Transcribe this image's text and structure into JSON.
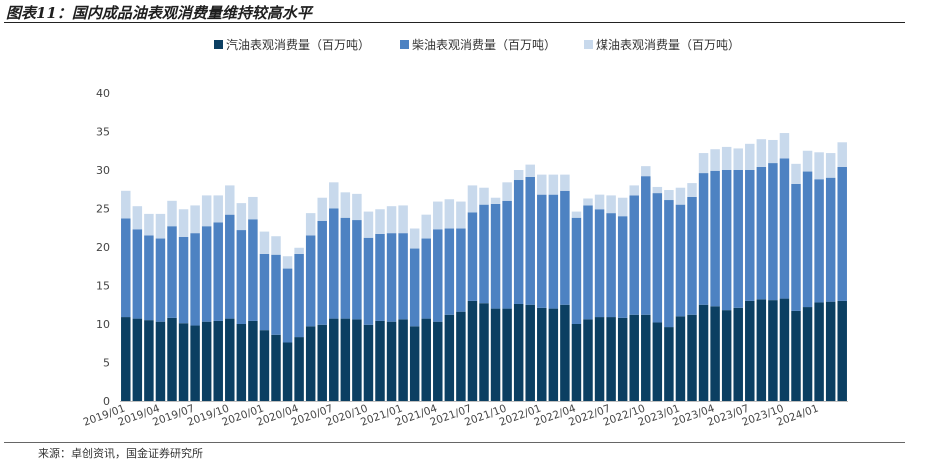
{
  "figure": {
    "title": "图表11：国内成品油表观消费量维持较高水平",
    "source": "来源：卓创资讯，国金证券研究所"
  },
  "colors": {
    "gasoline": "#0b3f62",
    "diesel": "#4d82c2",
    "kerosene": "#c8d9ec",
    "axis": "#bfbfbf"
  },
  "chart_data": {
    "type": "bar",
    "stacked": true,
    "legend_position": "top",
    "ylim": [
      0,
      40
    ],
    "yticks": [
      0,
      5,
      10,
      15,
      20,
      25,
      30,
      35,
      40
    ],
    "grid": false,
    "categories": [
      "2019/01",
      "2019/02",
      "2019/03",
      "2019/04",
      "2019/05",
      "2019/06",
      "2019/07",
      "2019/08",
      "2019/09",
      "2019/10",
      "2019/11",
      "2019/12",
      "2020/01",
      "2020/02",
      "2020/03",
      "2020/04",
      "2020/05",
      "2020/06",
      "2020/07",
      "2020/08",
      "2020/09",
      "2020/10",
      "2020/11",
      "2020/12",
      "2021/01",
      "2021/02",
      "2021/03",
      "2021/04",
      "2021/05",
      "2021/06",
      "2021/07",
      "2021/08",
      "2021/09",
      "2021/10",
      "2021/11",
      "2021/12",
      "2022/01",
      "2022/02",
      "2022/03",
      "2022/04",
      "2022/05",
      "2022/06",
      "2022/07",
      "2022/08",
      "2022/09",
      "2022/10",
      "2022/11",
      "2022/12",
      "2023/01",
      "2023/02",
      "2023/03",
      "2023/04",
      "2023/05",
      "2023/06",
      "2023/07",
      "2023/08",
      "2023/09",
      "2023/10",
      "2023/11",
      "2023/12",
      "2024/01",
      "2024/02",
      "2024/03"
    ],
    "xtick_labels": [
      "2019/01",
      "2019/04",
      "2019/07",
      "2019/10",
      "2020/01",
      "2020/04",
      "2020/07",
      "2020/10",
      "2021/01",
      "2021/04",
      "2021/07",
      "2021/10",
      "2022/01",
      "2022/04",
      "2022/07",
      "2022/10",
      "2023/01",
      "2023/04",
      "2023/07",
      "2023/10",
      "2024/01"
    ],
    "series": [
      {
        "name": "汽油表观消费量（百万吨）",
        "values": [
          10.9,
          10.7,
          10.5,
          10.3,
          10.8,
          10.1,
          9.8,
          10.3,
          10.4,
          10.7,
          10.0,
          10.4,
          9.2,
          8.6,
          7.6,
          8.3,
          9.7,
          9.9,
          10.7,
          10.7,
          10.6,
          9.9,
          10.4,
          10.3,
          10.6,
          9.7,
          10.7,
          10.3,
          11.2,
          11.6,
          13.0,
          12.7,
          12.0,
          12.0,
          12.6,
          12.5,
          12.1,
          12.0,
          12.5,
          10.0,
          10.6,
          10.9,
          10.9,
          10.8,
          11.2,
          11.2,
          10.2,
          9.6,
          11.0,
          11.2,
          12.5,
          12.3,
          11.8,
          12.1,
          13.0,
          13.2,
          13.1,
          13.3,
          11.7,
          12.2,
          12.8,
          12.9,
          13.0
        ]
      },
      {
        "name": "柴油表观消费量（百万吨）",
        "values": [
          12.8,
          11.6,
          11.0,
          10.8,
          11.9,
          11.2,
          12.0,
          12.4,
          12.8,
          13.5,
          12.2,
          13.2,
          9.9,
          10.4,
          9.6,
          10.8,
          11.8,
          13.5,
          14.3,
          13.1,
          12.9,
          11.3,
          11.3,
          11.5,
          11.2,
          10.1,
          10.4,
          12.0,
          11.2,
          10.8,
          11.5,
          12.8,
          13.6,
          14.0,
          16.1,
          16.6,
          14.7,
          14.8,
          14.8,
          13.8,
          14.8,
          14.0,
          13.5,
          13.2,
          15.5,
          18.0,
          16.8,
          16.5,
          14.5,
          15.3,
          17.1,
          17.6,
          18.2,
          17.9,
          17.0,
          17.2,
          17.8,
          18.2,
          16.5,
          17.6,
          16.0,
          16.1,
          17.4
        ]
      },
      {
        "name": "煤油表观消费量（百万吨）",
        "values": [
          3.6,
          3.0,
          2.8,
          3.2,
          3.3,
          3.6,
          3.6,
          4.0,
          3.5,
          3.8,
          3.5,
          2.9,
          2.9,
          2.4,
          1.6,
          0.8,
          2.9,
          3.0,
          3.4,
          3.3,
          3.4,
          3.4,
          3.2,
          3.5,
          3.6,
          2.6,
          3.1,
          3.6,
          3.8,
          3.5,
          3.5,
          2.2,
          0.8,
          2.4,
          1.3,
          1.6,
          2.6,
          2.6,
          2.1,
          0.8,
          0.9,
          1.9,
          2.3,
          2.4,
          1.3,
          1.3,
          0.8,
          1.3,
          2.2,
          1.8,
          2.6,
          2.8,
          3.0,
          2.8,
          3.4,
          3.6,
          3.0,
          3.3,
          2.6,
          2.7,
          3.5,
          3.2,
          3.2
        ]
      }
    ]
  }
}
